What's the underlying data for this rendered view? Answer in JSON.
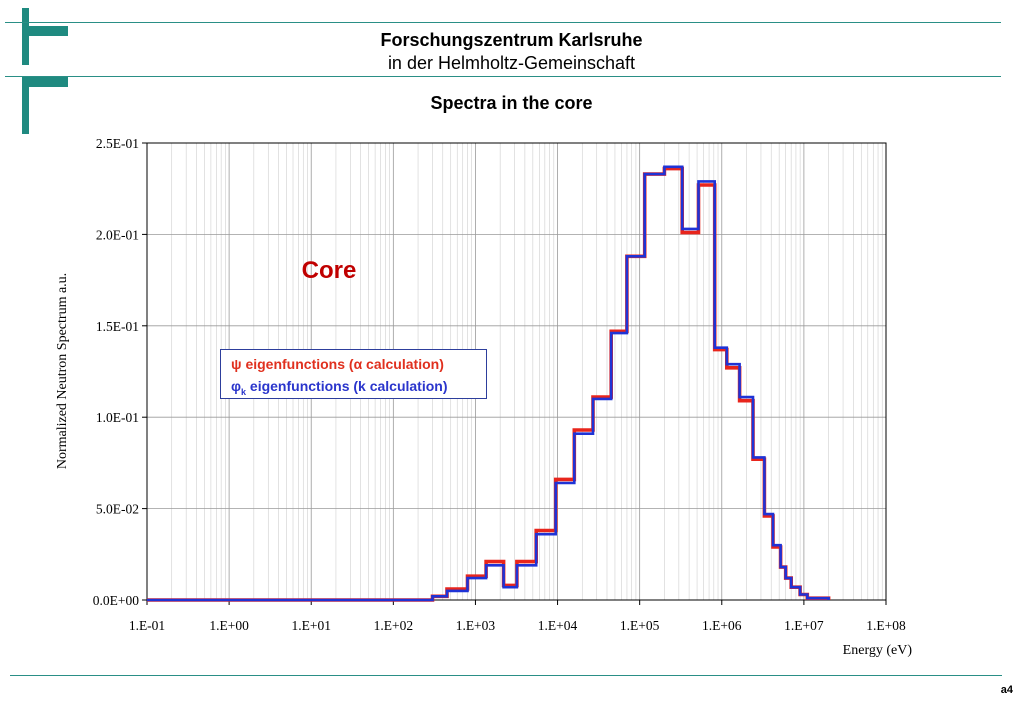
{
  "header": {
    "line1": "Forschungszentrum Karlsruhe",
    "line2": "in der Helmholtz-Gemeinschaft",
    "brand_color": "#1f8a80"
  },
  "slide_number": "a4",
  "chart_data": {
    "type": "line",
    "step": true,
    "title": "Spectra in the core",
    "xlabel": "Energy (eV)",
    "ylabel": "Normalized Neutron Spectrum a.u.",
    "x_scale": "log",
    "xlim": [
      0.1,
      100000000
    ],
    "ylim": [
      0,
      0.25
    ],
    "x_ticks": [
      "1.E-01",
      "1.E+00",
      "1.E+01",
      "1.E+02",
      "1.E+03",
      "1.E+04",
      "1.E+05",
      "1.E+06",
      "1.E+07",
      "1.E+08"
    ],
    "y_ticks": [
      "0.0E+00",
      "5.0E-02",
      "1.0E-01",
      "1.5E-01",
      "2.0E-01",
      "2.5E-01"
    ],
    "grid": true,
    "annotation": "Core",
    "legend": {
      "position": "middle-left",
      "entries": [
        {
          "symbol": "ψ",
          "sub": "",
          "text": " eigenfunctions (α calculation)",
          "color": "#e0301e"
        },
        {
          "symbol": "φ",
          "sub": "k",
          "text": " eigenfunctions (k calculation)",
          "color": "#2a35cc"
        }
      ]
    },
    "series": [
      {
        "name": "ψ eigenfunctions (α calculation)",
        "color": "#e8251c",
        "x": [
          0.1,
          300,
          450,
          800,
          1350,
          2200,
          3200,
          5500,
          9500,
          16000,
          27000,
          45000,
          70000,
          115000,
          200000,
          330000,
          520000,
          820000,
          1150000,
          1650000,
          2400000,
          3300000,
          4200000,
          5200000,
          6000000,
          7000000,
          9000000,
          11000000,
          20000000
        ],
        "y": [
          0,
          0.002,
          0.006,
          0.013,
          0.021,
          0.008,
          0.021,
          0.038,
          0.066,
          0.093,
          0.111,
          0.147,
          0.188,
          0.233,
          0.236,
          0.201,
          0.227,
          0.137,
          0.127,
          0.109,
          0.077,
          0.046,
          0.029,
          0.018,
          0.012,
          0.007,
          0.003,
          0.001,
          0
        ]
      },
      {
        "name": "φk eigenfunctions (k calculation)",
        "color": "#1f33d6",
        "x": [
          0.1,
          300,
          450,
          800,
          1350,
          2200,
          3200,
          5500,
          9500,
          16000,
          27000,
          45000,
          70000,
          115000,
          200000,
          330000,
          520000,
          820000,
          1150000,
          1650000,
          2400000,
          3300000,
          4200000,
          5200000,
          6000000,
          7000000,
          9000000,
          11000000,
          20000000
        ],
        "y": [
          0,
          0.002,
          0.005,
          0.012,
          0.019,
          0.007,
          0.019,
          0.036,
          0.064,
          0.091,
          0.11,
          0.146,
          0.188,
          0.233,
          0.237,
          0.203,
          0.229,
          0.138,
          0.129,
          0.111,
          0.078,
          0.047,
          0.03,
          0.018,
          0.012,
          0.007,
          0.003,
          0.001,
          0
        ]
      }
    ]
  }
}
